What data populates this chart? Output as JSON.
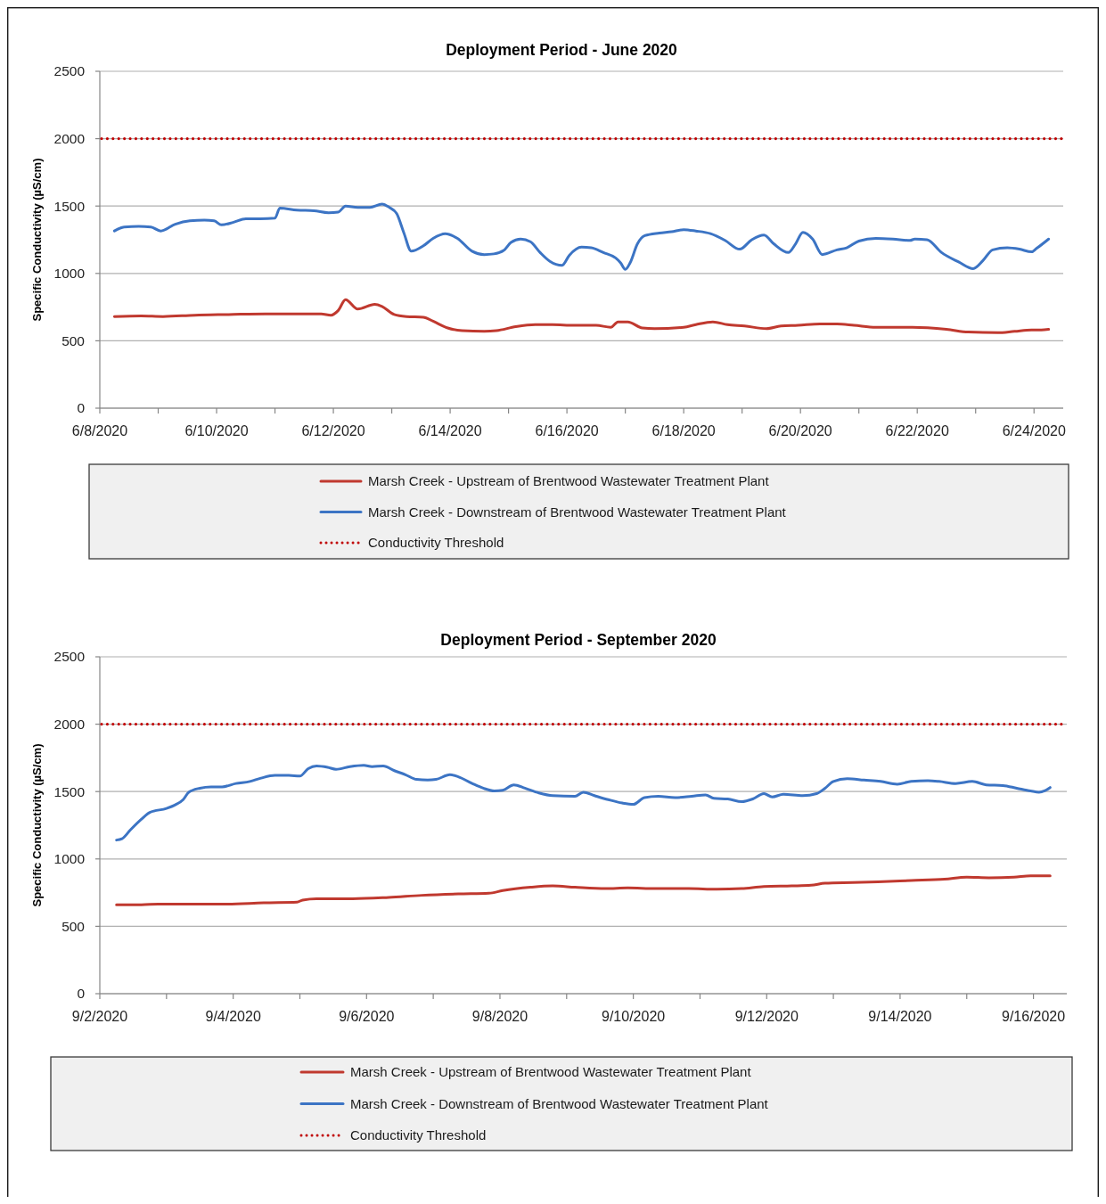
{
  "chart_data": [
    {
      "type": "line",
      "title": "Deployment Period - June 2020",
      "ylabel": "Specific Conductivity (µS/cm)",
      "xlim": [
        "2020-06-08",
        "2020-06-24T12:00"
      ],
      "xticks": [
        {
          "value": "2020-06-08",
          "label": "6/8/2020"
        },
        {
          "value": "2020-06-09",
          "label": null
        },
        {
          "value": "2020-06-10",
          "label": "6/10/2020"
        },
        {
          "value": "2020-06-11",
          "label": null
        },
        {
          "value": "2020-06-12",
          "label": "6/12/2020"
        },
        {
          "value": "2020-06-13",
          "label": null
        },
        {
          "value": "2020-06-14",
          "label": "6/14/2020"
        },
        {
          "value": "2020-06-15",
          "label": null
        },
        {
          "value": "2020-06-16",
          "label": "6/16/2020"
        },
        {
          "value": "2020-06-17",
          "label": null
        },
        {
          "value": "2020-06-18",
          "label": "6/18/2020"
        },
        {
          "value": "2020-06-19",
          "label": null
        },
        {
          "value": "2020-06-20",
          "label": "6/20/2020"
        },
        {
          "value": "2020-06-21",
          "label": null
        },
        {
          "value": "2020-06-22",
          "label": "6/22/2020"
        },
        {
          "value": "2020-06-23",
          "label": null
        },
        {
          "value": "2020-06-24",
          "label": "6/24/2020"
        }
      ],
      "ylim": [
        0,
        2500
      ],
      "yticks": [
        0,
        500,
        1000,
        1500,
        2000,
        2500
      ],
      "grid": "y",
      "legend": "bottom",
      "ref_lines": [
        {
          "axis": "y",
          "value": 2000,
          "label": "Conductivity Threshold",
          "color": "#c00000",
          "line_style": "dotted"
        }
      ],
      "series": [
        {
          "name": "Marsh Creek - Upstream of Brentwood Wastewater Treatment Plant",
          "color": "#c0392f",
          "x": [
            "2020-06-08T06:00",
            "2020-06-08T17:00",
            "2020-06-09T02:00",
            "2020-06-09T15:00",
            "2020-06-10T05:00",
            "2020-06-10T20:00",
            "2020-06-11T10:00",
            "2020-06-11T19:00",
            "2020-06-11T23:00",
            "2020-06-12T02:00",
            "2020-06-12T05:00",
            "2020-06-12T10:00",
            "2020-06-12T17:00",
            "2020-06-12T20:00",
            "2020-06-13T01:00",
            "2020-06-13T06:00",
            "2020-06-13T13:00",
            "2020-06-13T17:00",
            "2020-06-13T23:00",
            "2020-06-14T05:00",
            "2020-06-14T14:00",
            "2020-06-14T19:00",
            "2020-06-15T03:00",
            "2020-06-15T11:00",
            "2020-06-15T18:00",
            "2020-06-16T03:00",
            "2020-06-16T12:00",
            "2020-06-16T18:00",
            "2020-06-16T21:00",
            "2020-06-17T01:00",
            "2020-06-17T07:00",
            "2020-06-17T12:00",
            "2020-06-18T00:00",
            "2020-06-18T05:00",
            "2020-06-18T12:00",
            "2020-06-18T18:00",
            "2020-06-19T01:00",
            "2020-06-19T10:00",
            "2020-06-19T16:00",
            "2020-06-19T23:00",
            "2020-06-20T08:00",
            "2020-06-20T15:00",
            "2020-06-20T22:00",
            "2020-06-21T07:00",
            "2020-06-21T22:00",
            "2020-06-22T12:00",
            "2020-06-22T21:00",
            "2020-06-23T09:00",
            "2020-06-23T16:00",
            "2020-06-23T23:00",
            "2020-06-24T03:00",
            "2020-06-24T06:00"
          ],
          "values": [
            680,
            685,
            680,
            690,
            695,
            700,
            700,
            700,
            690,
            725,
            805,
            735,
            770,
            755,
            695,
            680,
            675,
            645,
            595,
            575,
            570,
            575,
            605,
            620,
            620,
            615,
            615,
            600,
            640,
            640,
            595,
            590,
            600,
            620,
            640,
            620,
            610,
            590,
            610,
            615,
            625,
            625,
            615,
            600,
            600,
            585,
            565,
            560,
            570,
            580,
            580,
            585
          ]
        },
        {
          "name": "Marsh Creek - Downstream of Brentwood Wastewater Treatment Plant",
          "color": "#3c74c4",
          "x": [
            "2020-06-08T06:00",
            "2020-06-08T10:00",
            "2020-06-08T16:00",
            "2020-06-08T21:00",
            "2020-06-09T01:00",
            "2020-06-09T07:00",
            "2020-06-09T13:00",
            "2020-06-09T19:00",
            "2020-06-09T23:00",
            "2020-06-10T02:00",
            "2020-06-10T07:00",
            "2020-06-10T12:00",
            "2020-06-10T18:00",
            "2020-06-11T00:00",
            "2020-06-11T02:00",
            "2020-06-11T09:00",
            "2020-06-11T16:00",
            "2020-06-11T22:00",
            "2020-06-12T02:00",
            "2020-06-12T05:00",
            "2020-06-12T10:00",
            "2020-06-12T15:00",
            "2020-06-12T20:00",
            "2020-06-12T23:00",
            "2020-06-13T02:00",
            "2020-06-13T05:00",
            "2020-06-13T08:00",
            "2020-06-13T13:00",
            "2020-06-13T17:00",
            "2020-06-13T22:00",
            "2020-06-14T03:00",
            "2020-06-14T09:00",
            "2020-06-14T14:00",
            "2020-06-14T18:00",
            "2020-06-14T22:00",
            "2020-06-15T01:00",
            "2020-06-15T05:00",
            "2020-06-15T09:00",
            "2020-06-15T13:00",
            "2020-06-15T17:00",
            "2020-06-15T22:00",
            "2020-06-16T01:00",
            "2020-06-16T06:00",
            "2020-06-16T10:00",
            "2020-06-16T15:00",
            "2020-06-16T20:00",
            "2020-06-16T22:00",
            "2020-06-17T00:00",
            "2020-06-17T02:00",
            "2020-06-17T05:00",
            "2020-06-17T08:00",
            "2020-06-17T14:00",
            "2020-06-17T19:00",
            "2020-06-18T00:00",
            "2020-06-18T05:00",
            "2020-06-18T11:00",
            "2020-06-18T17:00",
            "2020-06-18T23:00",
            "2020-06-19T04:00",
            "2020-06-19T09:00",
            "2020-06-19T13:00",
            "2020-06-19T19:00",
            "2020-06-19T22:00",
            "2020-06-20T01:00",
            "2020-06-20T05:00",
            "2020-06-20T09:00",
            "2020-06-20T15:00",
            "2020-06-20T19:00",
            "2020-06-21T00:00",
            "2020-06-21T07:00",
            "2020-06-21T14:00",
            "2020-06-21T21:00",
            "2020-06-21T23:00",
            "2020-06-22T04:00",
            "2020-06-22T10:00",
            "2020-06-22T17:00",
            "2020-06-22T23:00",
            "2020-06-23T03:00",
            "2020-06-23T07:00",
            "2020-06-23T13:00",
            "2020-06-23T18:00",
            "2020-06-23T23:00",
            "2020-06-24T01:00",
            "2020-06-24T06:00"
          ],
          "values": [
            1315,
            1345,
            1350,
            1345,
            1315,
            1365,
            1390,
            1395,
            1390,
            1360,
            1380,
            1405,
            1405,
            1410,
            1485,
            1470,
            1465,
            1450,
            1455,
            1500,
            1490,
            1490,
            1515,
            1490,
            1445,
            1300,
            1165,
            1205,
            1260,
            1295,
            1260,
            1165,
            1140,
            1145,
            1170,
            1230,
            1255,
            1235,
            1155,
            1090,
            1060,
            1135,
            1195,
            1190,
            1155,
            1115,
            1080,
            1030,
            1080,
            1220,
            1280,
            1300,
            1310,
            1325,
            1315,
            1295,
            1245,
            1180,
            1250,
            1285,
            1220,
            1155,
            1220,
            1305,
            1255,
            1140,
            1175,
            1190,
            1240,
            1260,
            1255,
            1245,
            1255,
            1250,
            1155,
            1085,
            1035,
            1095,
            1175,
            1190,
            1180,
            1160,
            1185,
            1255
          ]
        }
      ]
    },
    {
      "type": "line",
      "title": "Deployment Period - September 2020",
      "ylabel": "Specific Conductivity (µS/cm)",
      "xlim": [
        "2020-09-02",
        "2020-09-16T12:00"
      ],
      "xticks": [
        {
          "value": "2020-09-02",
          "label": "9/2/2020"
        },
        {
          "value": "2020-09-03",
          "label": null
        },
        {
          "value": "2020-09-04",
          "label": "9/4/2020"
        },
        {
          "value": "2020-09-05",
          "label": null
        },
        {
          "value": "2020-09-06",
          "label": "9/6/2020"
        },
        {
          "value": "2020-09-07",
          "label": null
        },
        {
          "value": "2020-09-08",
          "label": "9/8/2020"
        },
        {
          "value": "2020-09-09",
          "label": null
        },
        {
          "value": "2020-09-10",
          "label": "9/10/2020"
        },
        {
          "value": "2020-09-11",
          "label": null
        },
        {
          "value": "2020-09-12",
          "label": "9/12/2020"
        },
        {
          "value": "2020-09-13",
          "label": null
        },
        {
          "value": "2020-09-14",
          "label": "9/14/2020"
        },
        {
          "value": "2020-09-15",
          "label": null
        },
        {
          "value": "2020-09-16",
          "label": "9/16/2020"
        }
      ],
      "ylim": [
        0,
        2500
      ],
      "yticks": [
        0,
        500,
        1000,
        1500,
        2000,
        2500
      ],
      "grid": "y",
      "legend": "bottom",
      "ref_lines": [
        {
          "axis": "y",
          "value": 2000,
          "label": "Conductivity Threshold",
          "color": "#c00000",
          "line_style": "dotted"
        }
      ],
      "series": [
        {
          "name": "Marsh Creek - Upstream of Brentwood Wastewater Treatment Plant",
          "color": "#c0392f",
          "x": [
            "2020-09-02T06:00",
            "2020-09-02T15:00",
            "2020-09-02T21:00",
            "2020-09-03T10:00",
            "2020-09-03T22:00",
            "2020-09-04T11:00",
            "2020-09-04T23:00",
            "2020-09-05T01:00",
            "2020-09-05T06:00",
            "2020-09-05T19:00",
            "2020-09-06T08:00",
            "2020-09-06T20:00",
            "2020-09-07T09:00",
            "2020-09-07T20:00",
            "2020-09-08T01:00",
            "2020-09-08T11:00",
            "2020-09-08T19:00",
            "2020-09-09T03:00",
            "2020-09-09T14:00",
            "2020-09-09T22:00",
            "2020-09-10T08:00",
            "2020-09-10T20:00",
            "2020-09-11T06:00",
            "2020-09-11T15:00",
            "2020-09-11T23:00",
            "2020-09-12T09:00",
            "2020-09-12T16:00",
            "2020-09-12T21:00",
            "2020-09-13T07:00",
            "2020-09-13T16:00",
            "2020-09-14T04:00",
            "2020-09-14T16:00",
            "2020-09-15T00:00",
            "2020-09-15T08:00",
            "2020-09-15T17:00",
            "2020-09-15T23:00",
            "2020-09-16T06:00"
          ],
          "values": [
            660,
            660,
            665,
            665,
            665,
            675,
            680,
            695,
            705,
            705,
            715,
            730,
            740,
            745,
            765,
            790,
            800,
            790,
            780,
            785,
            780,
            780,
            775,
            780,
            795,
            800,
            805,
            820,
            825,
            830,
            840,
            850,
            865,
            860,
            865,
            875,
            875
          ]
        },
        {
          "name": "Marsh Creek - Downstream of Brentwood Wastewater Treatment Plant",
          "color": "#3c74c4",
          "x": [
            "2020-09-02T06:00",
            "2020-09-02T08:00",
            "2020-09-02T11:00",
            "2020-09-02T15:00",
            "2020-09-02T18:00",
            "2020-09-03T00:00",
            "2020-09-03T03:00",
            "2020-09-03T06:00",
            "2020-09-03T08:00",
            "2020-09-03T12:00",
            "2020-09-03T16:00",
            "2020-09-03T20:00",
            "2020-09-04T01:00",
            "2020-09-04T06:00",
            "2020-09-04T10:00",
            "2020-09-04T15:00",
            "2020-09-04T20:00",
            "2020-09-05T00:00",
            "2020-09-05T03:00",
            "2020-09-05T06:00",
            "2020-09-05T10:00",
            "2020-09-05T13:00",
            "2020-09-05T18:00",
            "2020-09-05T23:00",
            "2020-09-06T02:00",
            "2020-09-06T06:00",
            "2020-09-06T10:00",
            "2020-09-06T14:00",
            "2020-09-06T18:00",
            "2020-09-06T22:00",
            "2020-09-07T01:00",
            "2020-09-07T06:00",
            "2020-09-07T09:00",
            "2020-09-07T14:00",
            "2020-09-07T18:00",
            "2020-09-07T22:00",
            "2020-09-08T01:00",
            "2020-09-08T05:00",
            "2020-09-08T09:00",
            "2020-09-08T14:00",
            "2020-09-08T19:00",
            "2020-09-09T03:00",
            "2020-09-09T06:00",
            "2020-09-09T10:00",
            "2020-09-09T15:00",
            "2020-09-09T20:00",
            "2020-09-10T00:00",
            "2020-09-10T04:00",
            "2020-09-10T09:00",
            "2020-09-10T15:00",
            "2020-09-10T21:00",
            "2020-09-11T02:00",
            "2020-09-11T05:00",
            "2020-09-11T10:00",
            "2020-09-11T15:00",
            "2020-09-11T19:00",
            "2020-09-11T23:00",
            "2020-09-12T02:00",
            "2020-09-12T06:00",
            "2020-09-12T13:00",
            "2020-09-12T18:00",
            "2020-09-12T21:00",
            "2020-09-13T00:00",
            "2020-09-13T05:00",
            "2020-09-13T11:00",
            "2020-09-13T17:00",
            "2020-09-13T23:00",
            "2020-09-14T04:00",
            "2020-09-14T10:00",
            "2020-09-14T14:00",
            "2020-09-14T20:00",
            "2020-09-15T02:00",
            "2020-09-15T07:00",
            "2020-09-15T13:00",
            "2020-09-15T18:00",
            "2020-09-15T23:00",
            "2020-09-16T02:00",
            "2020-09-16T04:00",
            "2020-09-16T06:00"
          ],
          "values": [
            1140,
            1150,
            1215,
            1295,
            1345,
            1375,
            1400,
            1440,
            1495,
            1525,
            1535,
            1535,
            1560,
            1575,
            1600,
            1620,
            1620,
            1615,
            1670,
            1690,
            1680,
            1665,
            1685,
            1695,
            1685,
            1690,
            1655,
            1625,
            1590,
            1585,
            1590,
            1625,
            1610,
            1560,
            1525,
            1505,
            1510,
            1550,
            1525,
            1490,
            1470,
            1465,
            1495,
            1470,
            1440,
            1415,
            1405,
            1455,
            1465,
            1455,
            1465,
            1475,
            1450,
            1445,
            1425,
            1445,
            1485,
            1460,
            1480,
            1470,
            1485,
            1525,
            1575,
            1595,
            1585,
            1575,
            1555,
            1575,
            1580,
            1575,
            1560,
            1575,
            1550,
            1545,
            1525,
            1505,
            1495,
            1505,
            1530
          ]
        }
      ]
    }
  ]
}
